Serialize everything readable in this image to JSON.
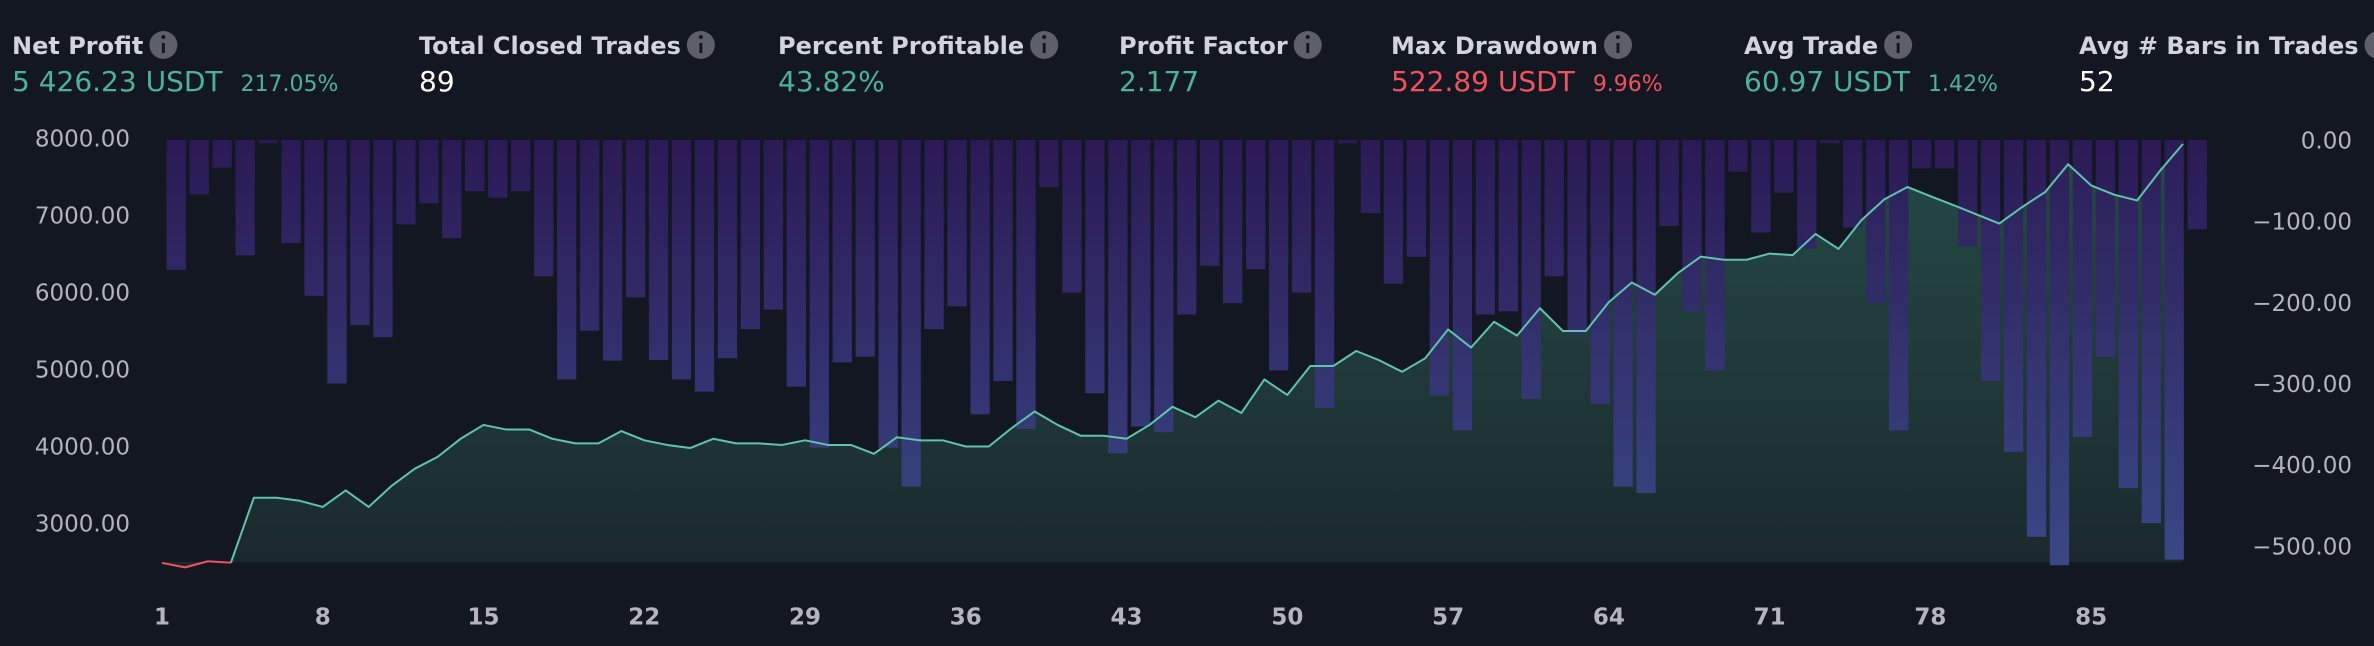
{
  "metrics": [
    {
      "label": "Net Profit",
      "value": "5 426.23 USDT",
      "sub": "217.05%",
      "color": "#4db396"
    },
    {
      "label": "Total Closed Trades",
      "value": "89",
      "color": "#ffffff"
    },
    {
      "label": "Percent Profitable",
      "value": "43.82%",
      "color": "#4db396"
    },
    {
      "label": "Profit Factor",
      "value": "2.177",
      "color": "#4db396"
    },
    {
      "label": "Max Drawdown",
      "value": "522.89 USDT",
      "sub": "9.96%",
      "color": "#f0525e"
    },
    {
      "label": "Avg Trade",
      "value": "60.97 USDT",
      "sub": "1.42%",
      "color": "#4db396"
    },
    {
      "label": "Avg # Bars in Trades",
      "value": "52",
      "color": "#ffffff"
    }
  ],
  "chart_data": {
    "type": "equity",
    "xlim": [
      1,
      89
    ],
    "xticks": [
      1,
      8,
      15,
      22,
      29,
      36,
      43,
      50,
      57,
      64,
      71,
      78,
      85
    ],
    "ylim": [
      2520,
      8000
    ],
    "yticks": [
      {
        "value": 3000,
        "label": "3000.00"
      },
      {
        "value": 4000,
        "label": "4000.00"
      },
      {
        "value": 5000,
        "label": "5000.00"
      },
      {
        "value": 6000,
        "label": "6000.00"
      },
      {
        "value": 7000,
        "label": "7000.00"
      },
      {
        "value": 8000,
        "label": "8000.00"
      }
    ],
    "y2lim": [
      -520,
      0
    ],
    "y2ticks": [
      {
        "value": 0,
        "label": "0.00"
      },
      {
        "value": -100,
        "label": "−100.00"
      },
      {
        "value": -200,
        "label": "−200.00"
      },
      {
        "value": -300,
        "label": "−300.00"
      },
      {
        "value": -400,
        "label": "−400.00"
      },
      {
        "value": -500,
        "label": "−500.00"
      }
    ],
    "equity": {
      "color": "#5fc4ab",
      "negative_color": "#f0525e",
      "values": [
        2508,
        2450,
        2530,
        2510,
        3355,
        3355,
        3315,
        3235,
        3450,
        3235,
        3510,
        3730,
        3885,
        4120,
        4300,
        4240,
        4240,
        4120,
        4060,
        4060,
        4220,
        4100,
        4040,
        4000,
        4120,
        4060,
        4060,
        4040,
        4100,
        4040,
        4040,
        3925,
        4140,
        4100,
        4100,
        4020,
        4020,
        4260,
        4475,
        4300,
        4160,
        4160,
        4120,
        4300,
        4535,
        4400,
        4615,
        4455,
        4890,
        4690,
        5065,
        5065,
        5260,
        5140,
        4990,
        5165,
        5540,
        5305,
        5640,
        5460,
        5815,
        5520,
        5520,
        5895,
        6150,
        5990,
        6270,
        6485,
        6445,
        6445,
        6525,
        6505,
        6780,
        6585,
        6960,
        7230,
        7390,
        7270,
        7155,
        7035,
        6915,
        7130,
        7325,
        7685,
        7410,
        7290,
        7215,
        7600,
        7950
      ]
    },
    "drawdown": {
      "axis": "y2",
      "color": "#2d1b5a",
      "values": [
        -160,
        -67,
        -34,
        -142,
        -4,
        -127,
        -192,
        -300,
        -228,
        -243,
        -104,
        -78,
        -121,
        -63,
        -71,
        -63,
        -168,
        -295,
        -235,
        -272,
        -194,
        -271,
        -295,
        -310,
        -269,
        -233,
        -209,
        -304,
        -379,
        -274,
        -267,
        -379,
        -427,
        -233,
        -205,
        -338,
        -297,
        -356,
        -58,
        -188,
        -312,
        -386,
        -353,
        -360,
        -215,
        -155,
        -201,
        -159,
        -284,
        -188,
        -330,
        -4,
        -90,
        -177,
        -144,
        -315,
        -358,
        -215,
        -211,
        -319,
        -168,
        -239,
        -325,
        -427,
        -435,
        -106,
        -211,
        -284,
        -39,
        -114,
        -65,
        -134,
        -4,
        -108,
        -201,
        -358,
        -35,
        -35,
        -131,
        -297,
        -384,
        -489,
        -524,
        -366,
        -267,
        -429,
        -472,
        -517,
        -110
      ]
    }
  }
}
